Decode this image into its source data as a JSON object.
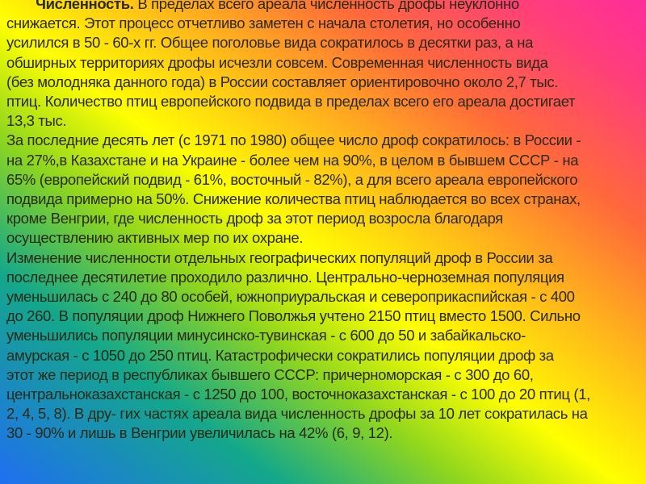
{
  "heading": "Численность.",
  "lines": [
    " В пределах всего ареала численность дрофы неуклонно",
    "снижается. Этот процесс отчетливо заметен с начала столетия, но особенно",
    "усилился в 50 - 60-х гг. Общее поголовье вида сократилось в десятки раз, а на",
    "обширных территориях дрофы исчезли совсем. Современная численность вида",
    "(без молодняка данного года) в России составляет ориентировочно около 2,7 тыс.",
    "птиц. Количество птиц европейского подвида в пределах всего его ареала достигает",
    "13,3 тыс.",
    "За последние десять лет (с 1971 по 1980) общее число дроф сократилось: в России -",
    "на 27%,в Казахстане и на Украине - более чем на 90%, в целом в бывшем СССР - на",
    "65% (европейский подвид - 61%, восточный - 82%), а для всего ареала европейского",
    "подвида примерно на 50%. Снижение количества птиц наблюдается во всех странах,",
    "кроме Венгрии, где численность дроф за этот период возросла благодаря",
    "осуществлению активных мер по их охране.",
    "Изменение численности отдельных географических популяций дроф в России за",
    "последнее десятилетие проходило различно. Центрально-черноземная популяция",
    "уменьшилась с 240 до 80 особей, южноприуральская и североприкаспийская - с 400",
    "до 260. В популяции дроф Нижнего Поволжья учтено 2150 птиц вместо 1500. Сильно",
    "уменьшились популяции минусинско-тувинская - с 600 до 50 и забайкальско-",
    "амурская - с 1050 до 250 птиц. Катастрофически сократились популяции дроф за",
    "этот же период в республиках бывшего СССР: причерноморская - с 300 до 60,",
    "центральноказахстанская - с 1250 до 100, восточноказахстанская - с 100 до 20 птиц (1,",
    "2, 4, 5, 8). В дру- гих частях ареала вида численность дрофы за 10 лет сократилась на",
    "30 - 90% и лишь в Венгрии увеличилась на 42% (6, 9, 12)."
  ]
}
